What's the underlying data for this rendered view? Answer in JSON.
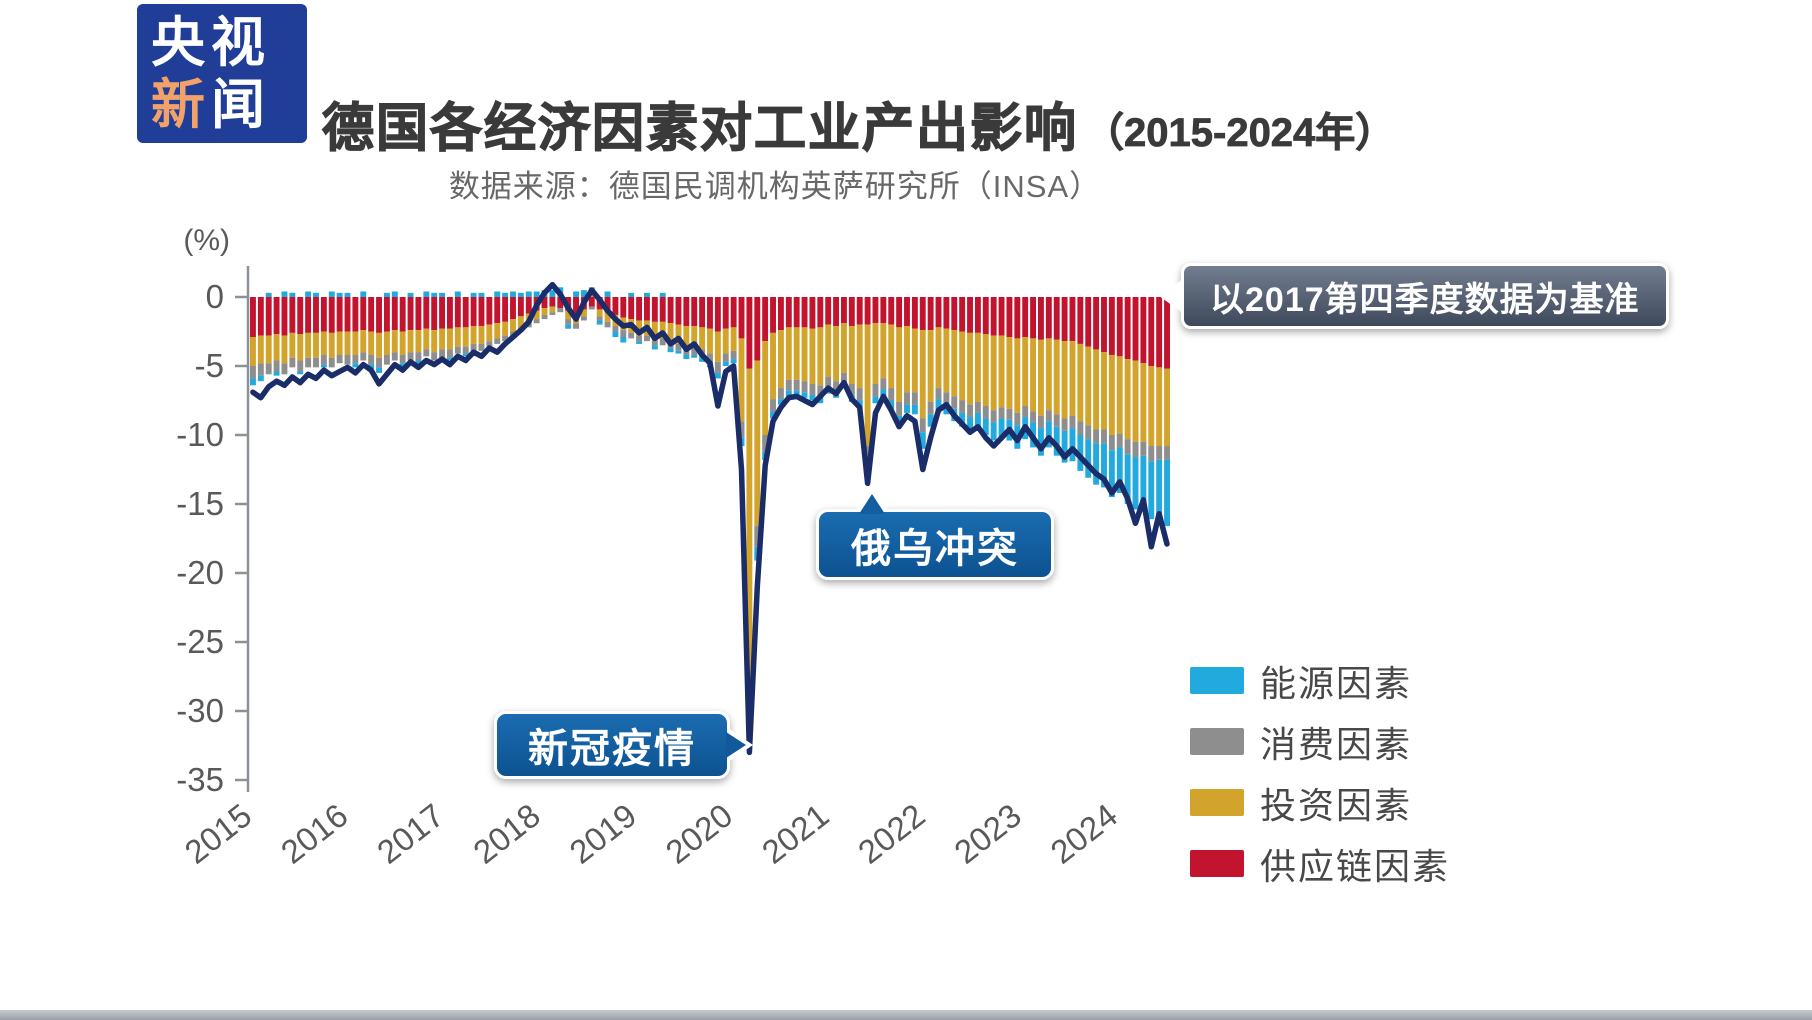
{
  "page": {
    "background": "#ffffff",
    "footer_bar_color": "#aab0b8"
  },
  "logo": {
    "line1": "央视",
    "line2_char1": "新",
    "line2_char2": "闻",
    "bg_color": "#203e97",
    "accent_color": "#f1a26b"
  },
  "header": {
    "title": "德国各经济因素对工业产出影响",
    "title_suffix": "（2015-2024年）",
    "source_line": "数据来源：德国民调机构英萨研究所（INSA）"
  },
  "annotations": {
    "baseline_note": "以2017第四季度数据为基准",
    "covid_label": "新冠疫情",
    "ukraine_label": "俄乌冲突"
  },
  "legend": [
    {
      "label": "能源因素",
      "color": "#22a9de"
    },
    {
      "label": "消费因素",
      "color": "#8e8e8e"
    },
    {
      "label": "投资因素",
      "color": "#d3a42b"
    },
    {
      "label": "供应链因素",
      "color": "#c2142f"
    }
  ],
  "chart_data": {
    "type": "bar",
    "subtype": "stacked monthly bars with total line overlay",
    "unit": "%",
    "ylabel": "(%)",
    "ylim": [
      -35,
      2
    ],
    "yticks": [
      0,
      -5,
      -10,
      -15,
      -20,
      -25,
      -30,
      -35
    ],
    "x_years": [
      "2015",
      "2016",
      "2017",
      "2018",
      "2019",
      "2020",
      "2021",
      "2022",
      "2023",
      "2024"
    ],
    "points_per_year": 12,
    "n_points": 117,
    "stack_order_from_zero": [
      "供应链因素",
      "投资因素",
      "消费因素",
      "能源因素"
    ],
    "series": [
      {
        "name": "供应链因素",
        "color": "#c2142f",
        "values": [
          -2.9,
          -2.8,
          -2.8,
          -2.7,
          -2.8,
          -2.6,
          -2.7,
          -2.6,
          -2.6,
          -2.5,
          -2.6,
          -2.5,
          -2.5,
          -2.5,
          -2.4,
          -2.5,
          -2.6,
          -2.5,
          -2.4,
          -2.5,
          -2.4,
          -2.4,
          -2.3,
          -2.4,
          -2.3,
          -2.3,
          -2.2,
          -2.2,
          -2.1,
          -2.1,
          -2.0,
          -1.9,
          -1.8,
          -1.6,
          -1.4,
          -1.2,
          -1.0,
          -0.8,
          -0.7,
          -0.8,
          -1.0,
          -1.2,
          -0.9,
          -0.7,
          -0.9,
          -1.1,
          -1.3,
          -1.5,
          -1.6,
          -1.7,
          -1.7,
          -1.8,
          -1.8,
          -1.9,
          -2.0,
          -2.1,
          -2.1,
          -2.2,
          -2.3,
          -2.5,
          -2.3,
          -2.2,
          -3.0,
          -5.2,
          -4.6,
          -3.2,
          -2.6,
          -2.4,
          -2.2,
          -2.2,
          -2.2,
          -2.3,
          -2.2,
          -2.0,
          -2.1,
          -1.9,
          -2.1,
          -2.0,
          -2.0,
          -1.9,
          -1.9,
          -2.0,
          -2.2,
          -2.1,
          -2.3,
          -2.4,
          -2.4,
          -2.2,
          -2.3,
          -2.4,
          -2.5,
          -2.6,
          -2.6,
          -2.7,
          -2.8,
          -2.8,
          -2.9,
          -3.0,
          -2.9,
          -3.0,
          -3.1,
          -3.0,
          -3.1,
          -3.2,
          -3.2,
          -3.4,
          -3.6,
          -3.8,
          -4.0,
          -4.2,
          -4.3,
          -4.5,
          -4.6,
          -4.8,
          -5.0,
          -5.1,
          -5.2
        ]
      },
      {
        "name": "投资因素",
        "color": "#d3a42b",
        "values": [
          -2.1,
          -2.0,
          -2.0,
          -1.9,
          -2.0,
          -1.8,
          -1.9,
          -1.8,
          -1.8,
          -1.7,
          -1.8,
          -1.7,
          -1.7,
          -1.7,
          -1.6,
          -1.7,
          -1.8,
          -1.7,
          -1.6,
          -1.7,
          -1.6,
          -1.6,
          -1.5,
          -1.6,
          -1.5,
          -1.5,
          -1.4,
          -1.4,
          -1.3,
          -1.3,
          -1.2,
          -1.1,
          -1.0,
          -0.9,
          -0.8,
          -0.7,
          -0.6,
          -0.5,
          -0.4,
          0.3,
          -0.6,
          -0.7,
          -0.5,
          0.3,
          -0.5,
          -0.7,
          -0.8,
          -0.9,
          -1.0,
          -1.1,
          -1.1,
          -1.2,
          -1.2,
          -1.3,
          -1.4,
          -1.5,
          -1.5,
          -1.6,
          -1.8,
          -2.2,
          -1.8,
          -1.7,
          -6.0,
          -22.3,
          -12.0,
          -6.8,
          -4.8,
          -4.2,
          -3.8,
          -3.8,
          -3.9,
          -4.0,
          -4.2,
          -3.8,
          -4.0,
          -3.6,
          -4.2,
          -4.6,
          -8.8,
          -4.4,
          -4.0,
          -4.6,
          -5.4,
          -4.8,
          -4.6,
          -6.4,
          -5.2,
          -4.4,
          -4.6,
          -4.8,
          -5.0,
          -5.2,
          -5.0,
          -5.2,
          -5.4,
          -5.2,
          -5.2,
          -5.4,
          -5.0,
          -5.3,
          -5.5,
          -5.2,
          -5.4,
          -5.6,
          -5.4,
          -5.6,
          -5.7,
          -5.8,
          -5.6,
          -5.8,
          -5.6,
          -5.8,
          -5.9,
          -5.7,
          -5.8,
          -5.7,
          -5.6
        ]
      },
      {
        "name": "消费因素",
        "color": "#8e8e8e",
        "values": [
          -0.9,
          -0.9,
          -0.8,
          -0.8,
          -0.8,
          -0.7,
          -0.8,
          -0.7,
          -0.7,
          -0.7,
          -0.7,
          -0.6,
          -0.7,
          -0.6,
          -0.6,
          -0.7,
          -0.7,
          -0.7,
          -0.6,
          -0.6,
          -0.6,
          -0.6,
          -0.5,
          -0.6,
          -0.6,
          -0.6,
          -0.5,
          -0.5,
          -0.5,
          -0.5,
          -0.4,
          -0.4,
          -0.4,
          -0.3,
          -0.3,
          -0.3,
          -0.3,
          -0.3,
          -0.2,
          -0.3,
          -0.4,
          -0.4,
          -0.3,
          -0.2,
          -0.3,
          -0.4,
          -0.4,
          -0.5,
          -0.4,
          -0.4,
          -0.4,
          -0.5,
          -0.5,
          -0.5,
          -0.5,
          -0.6,
          -0.6,
          -0.6,
          -0.7,
          -0.8,
          -0.6,
          -0.6,
          -1.2,
          -2.0,
          -1.5,
          -1.2,
          -0.9,
          -0.8,
          -0.8,
          -0.8,
          -0.8,
          -0.8,
          -0.9,
          -0.8,
          -0.8,
          -0.7,
          -0.8,
          -0.9,
          -1.0,
          -0.9,
          -0.8,
          -0.9,
          -1.0,
          -0.9,
          -0.9,
          -1.0,
          -0.9,
          -0.8,
          -0.8,
          -0.9,
          -0.9,
          -0.9,
          -0.8,
          -0.9,
          -0.9,
          -0.8,
          -0.8,
          -0.9,
          -0.8,
          -0.8,
          -0.9,
          -0.8,
          -0.9,
          -0.9,
          -0.9,
          -1.0,
          -1.0,
          -1.0,
          -1.0,
          -1.1,
          -1.0,
          -1.1,
          -1.1,
          -1.0,
          -1.1,
          -1.0,
          -1.0
        ]
      },
      {
        "name": "能源因素",
        "color": "#22a9de",
        "values": [
          -0.5,
          -0.4,
          0.3,
          -0.3,
          0.4,
          0.3,
          -0.2,
          0.4,
          0.3,
          -0.2,
          0.4,
          0.3,
          0.3,
          -0.3,
          0.4,
          -0.3,
          -0.4,
          0.3,
          0.4,
          -0.3,
          0.3,
          -0.3,
          0.4,
          0.3,
          0.3,
          -0.2,
          0.4,
          -0.2,
          0.3,
          0.3,
          -0.2,
          0.4,
          0.3,
          0.4,
          0.3,
          0.4,
          0.4,
          0.5,
          0.5,
          0.4,
          -0.3,
          0.4,
          0.5,
          0.4,
          -0.3,
          0.4,
          -0.4,
          -0.4,
          0.3,
          -0.2,
          0.3,
          -0.3,
          0.3,
          -0.3,
          -0.2,
          -0.3,
          -0.2,
          -0.3,
          -0.3,
          -0.4,
          -0.3,
          -0.3,
          -0.6,
          -1.0,
          -1.0,
          -0.6,
          -0.5,
          -0.4,
          -0.4,
          -0.4,
          -0.4,
          -0.4,
          -0.4,
          -0.4,
          -0.4,
          -0.4,
          -0.5,
          -0.5,
          -0.7,
          -0.5,
          -0.5,
          -0.6,
          -0.7,
          -0.6,
          -0.7,
          -1.2,
          -0.9,
          -0.8,
          -0.8,
          -0.9,
          -1.0,
          -1.1,
          -1.1,
          -1.2,
          -1.3,
          -1.4,
          -1.5,
          -1.7,
          -1.6,
          -1.8,
          -2.0,
          -1.9,
          -2.1,
          -2.3,
          -2.4,
          -2.6,
          -2.8,
          -3.0,
          -3.2,
          -3.4,
          -3.3,
          -3.6,
          -3.8,
          -3.7,
          -4.2,
          -4.0,
          -4.8
        ]
      }
    ],
    "line": {
      "color": "#1b2d68",
      "values": [
        -6.9,
        -7.3,
        -6.5,
        -6.1,
        -6.4,
        -5.8,
        -6.2,
        -5.6,
        -5.9,
        -5.3,
        -5.7,
        -5.4,
        -5.1,
        -5.5,
        -4.9,
        -5.3,
        -6.3,
        -5.6,
        -4.9,
        -5.3,
        -4.7,
        -5.1,
        -4.6,
        -4.9,
        -4.5,
        -4.9,
        -4.3,
        -4.6,
        -4.0,
        -4.3,
        -3.7,
        -4.0,
        -3.4,
        -2.9,
        -2.4,
        -1.8,
        -0.6,
        0.3,
        0.9,
        0.2,
        -0.8,
        -1.6,
        -0.4,
        0.5,
        -0.2,
        -1.0,
        -1.6,
        -2.1,
        -2.0,
        -2.6,
        -2.2,
        -3.0,
        -2.6,
        -3.4,
        -3.0,
        -3.8,
        -3.4,
        -4.2,
        -4.8,
        -7.9,
        -5.4,
        -5.0,
        -12.5,
        -33.0,
        -21.0,
        -12.2,
        -9.0,
        -8.0,
        -7.3,
        -7.2,
        -7.5,
        -7.8,
        -7.2,
        -6.6,
        -7.0,
        -6.2,
        -7.4,
        -8.0,
        -13.5,
        -8.4,
        -7.2,
        -8.2,
        -9.4,
        -8.6,
        -9.0,
        -12.5,
        -10.2,
        -8.2,
        -7.8,
        -8.6,
        -9.2,
        -9.8,
        -9.4,
        -10.2,
        -10.8,
        -10.2,
        -9.6,
        -10.4,
        -9.4,
        -10.2,
        -11.0,
        -10.2,
        -10.8,
        -11.6,
        -11.0,
        -11.6,
        -12.2,
        -12.8,
        -13.2,
        -14.2,
        -13.4,
        -14.6,
        -16.4,
        -14.7,
        -18.1,
        -15.7,
        -17.9
      ]
    }
  }
}
